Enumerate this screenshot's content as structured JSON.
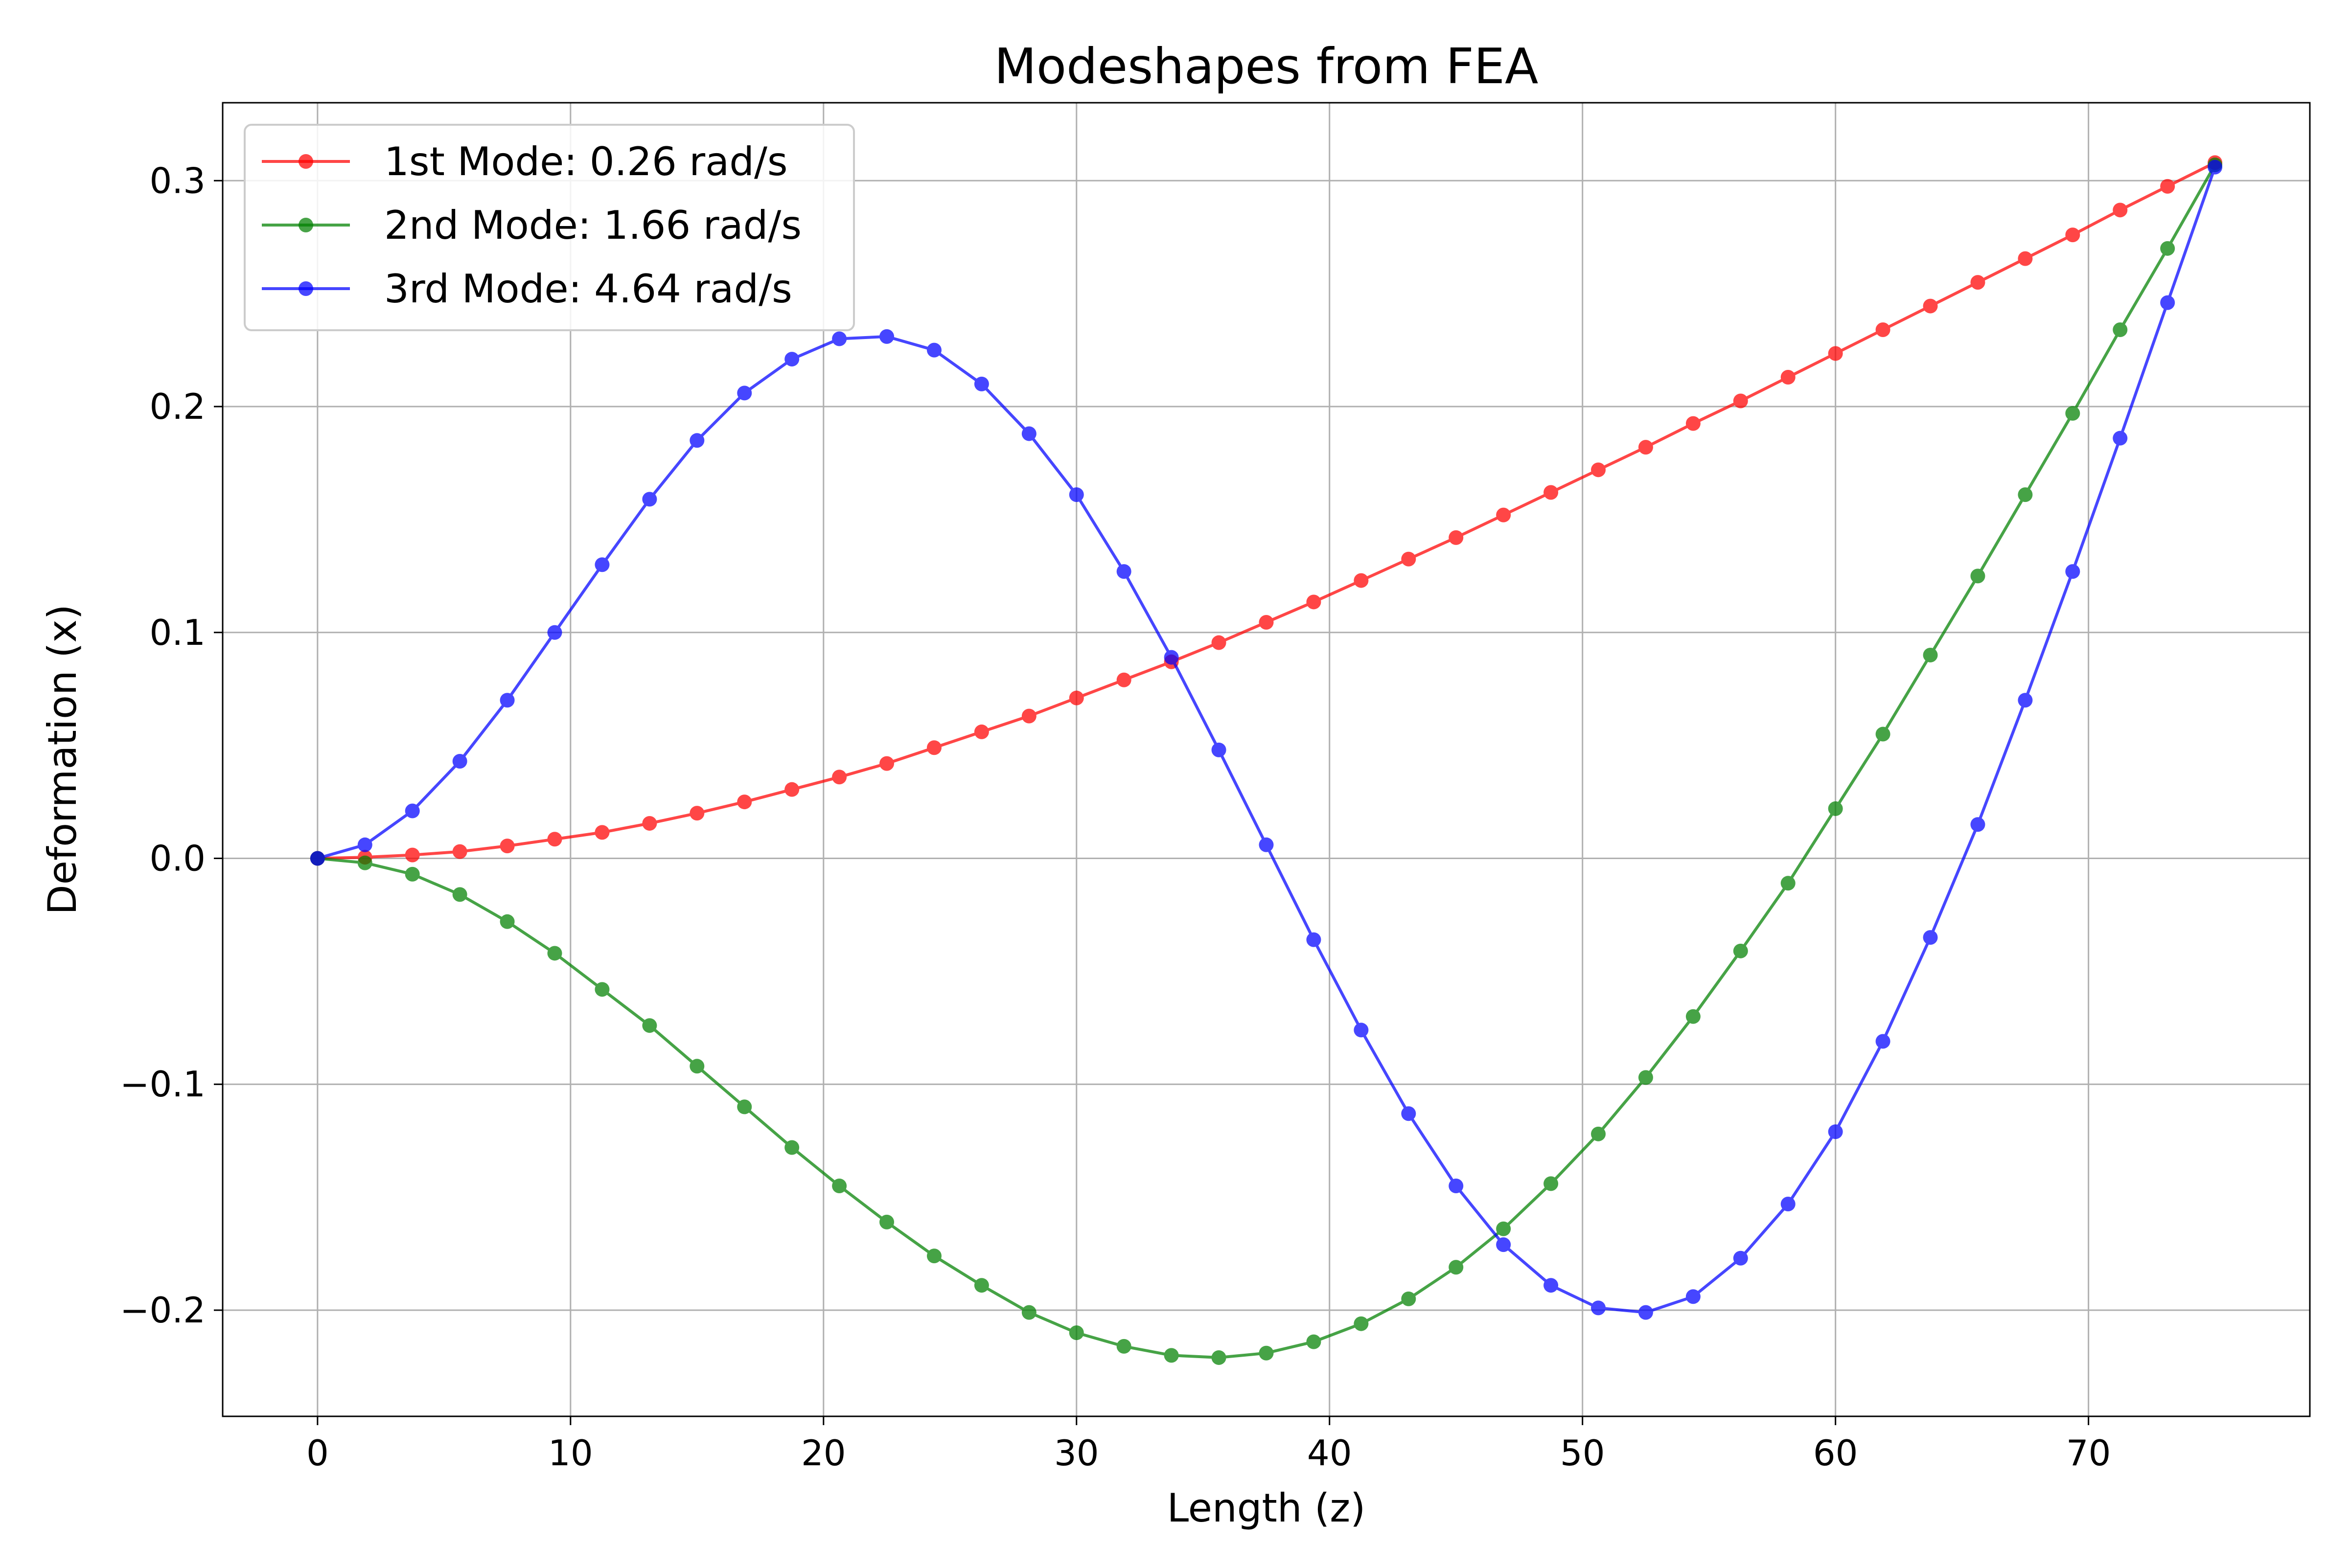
{
  "chart_data": {
    "type": "line",
    "title": "Modeshapes from FEA",
    "xlabel": "Length (z)",
    "ylabel": "Deformation (x)",
    "xlim": [
      -3.75,
      78.75
    ],
    "ylim": [
      -0.247,
      0.3345
    ],
    "xticks": [
      0,
      10,
      20,
      30,
      40,
      50,
      60,
      70
    ],
    "yticks": [
      -0.2,
      -0.1,
      0.0,
      0.1,
      0.2,
      0.3
    ],
    "xtick_labels": [
      "0",
      "10",
      "20",
      "30",
      "40",
      "50",
      "60",
      "70"
    ],
    "ytick_labels": [
      "−0.2",
      "−0.1",
      "0.0",
      "0.1",
      "0.2",
      "0.3"
    ],
    "grid": true,
    "legend_position": "upper-left",
    "x": [
      0,
      1.875,
      3.75,
      5.625,
      7.5,
      9.375,
      11.25,
      13.125,
      15,
      16.875,
      18.75,
      20.625,
      22.5,
      24.375,
      26.25,
      28.125,
      30,
      31.875,
      33.75,
      35.625,
      37.5,
      39.375,
      41.25,
      43.125,
      45,
      46.875,
      48.75,
      50.625,
      52.5,
      54.375,
      56.25,
      58.125,
      60,
      61.875,
      63.75,
      65.625,
      67.5,
      69.375,
      71.25,
      73.125,
      75
    ],
    "series": [
      {
        "name": "1st Mode: 0.26 rad/s",
        "color": "#ff0000",
        "values": [
          0.0,
          0.0005,
          0.0015,
          0.003,
          0.0055,
          0.0085,
          0.0115,
          0.0155,
          0.02,
          0.025,
          0.0305,
          0.036,
          0.042,
          0.049,
          0.056,
          0.063,
          0.071,
          0.079,
          0.087,
          0.0955,
          0.1045,
          0.1135,
          0.123,
          0.1325,
          0.142,
          0.152,
          0.162,
          0.172,
          0.182,
          0.1925,
          0.2025,
          0.213,
          0.2235,
          0.234,
          0.2445,
          0.255,
          0.2655,
          0.276,
          0.287,
          0.2975,
          0.308
        ]
      },
      {
        "name": "2nd Mode: 1.66 rad/s",
        "color": "#008000",
        "values": [
          0.0,
          -0.002,
          -0.007,
          -0.016,
          -0.028,
          -0.042,
          -0.058,
          -0.074,
          -0.092,
          -0.11,
          -0.128,
          -0.145,
          -0.161,
          -0.176,
          -0.189,
          -0.201,
          -0.21,
          -0.216,
          -0.22,
          -0.221,
          -0.219,
          -0.214,
          -0.206,
          -0.195,
          -0.181,
          -0.164,
          -0.144,
          -0.122,
          -0.097,
          -0.07,
          -0.041,
          -0.011,
          0.022,
          0.055,
          0.09,
          0.125,
          0.161,
          0.197,
          0.234,
          0.27,
          0.307
        ]
      },
      {
        "name": "3rd Mode: 4.64 rad/s",
        "color": "#0000ff",
        "values": [
          0.0,
          0.006,
          0.021,
          0.043,
          0.07,
          0.1,
          0.13,
          0.159,
          0.185,
          0.206,
          0.221,
          0.23,
          0.231,
          0.225,
          0.21,
          0.188,
          0.161,
          0.127,
          0.089,
          0.048,
          0.006,
          -0.036,
          -0.076,
          -0.113,
          -0.145,
          -0.171,
          -0.189,
          -0.199,
          -0.201,
          -0.194,
          -0.177,
          -0.153,
          -0.121,
          -0.081,
          -0.035,
          0.015,
          0.07,
          0.127,
          0.186,
          0.246,
          0.306
        ]
      }
    ]
  }
}
